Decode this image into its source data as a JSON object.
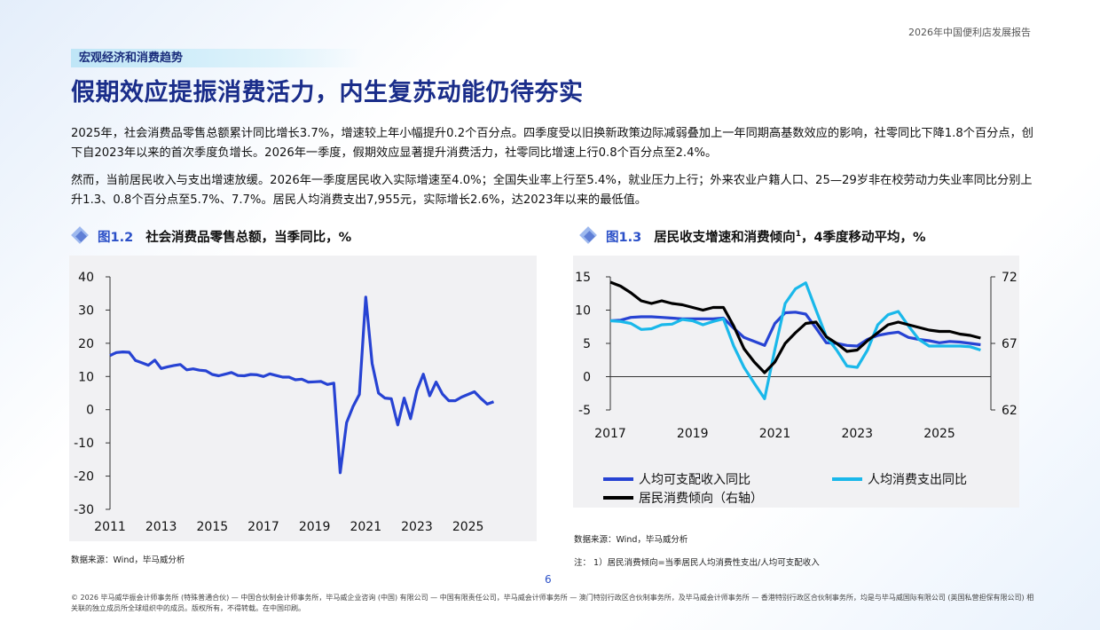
{
  "report_title": "2026年中国便利店发展报告",
  "section_tag": "宏观经济和消费趋势",
  "headline": "假期效应提振消费活力，内生复苏动能仍待夯实",
  "paragraphs": [
    "2025年，社会消费品零售总额累计同比增长3.7%，增速较上年小幅提升0.2个百分点。四季度受以旧换新政策边际减弱叠加上一年同期高基数效应的影响，社零同比下降1.8个百分点，创下自2023年以来的首次季度负增长。2026年一季度，假期效应显著提升消费活力，社零同比增速上行0.8个百分点至2.4%。",
    "然而，当前居民收入与支出增速放缓。2026年一季度居民收入实际增速至4.0%；全国失业率上行至5.4%，就业压力上行；外来农业户籍人口、25—29岁非在校劳动力失业率同比分别上升1.3、0.8个百分点至5.7%、7.7%。居民人均消费支出7,955元，实际增长2.6%，达2023年以来的最低值。"
  ],
  "figures": {
    "left": {
      "num": "图1.2",
      "title": "社会消费品零售总额，当季同比，%",
      "source": "数据来源：Wind，毕马威分析"
    },
    "right": {
      "num": "图1.3",
      "title": "居民收支增速和消费倾向",
      "title_sup": "1",
      "title_rest": "，4季度移动平均，%",
      "source": "数据来源：Wind，毕马威分析",
      "note": "注：  1）居民消费倾向=当季居民人均消费性支出/人均可支配收入"
    }
  },
  "chart_data": [
    {
      "type": "line",
      "title": "社会消费品零售总额，当季同比，%",
      "x_ticks": [
        "2011",
        "2013",
        "2015",
        "2017",
        "2019",
        "2021",
        "2023",
        "2025"
      ],
      "y_ticks": [
        "40",
        "30",
        "20",
        "10",
        "0",
        "-10",
        "-20",
        "-30"
      ],
      "ylim": [
        -30,
        40
      ],
      "xlim": [
        2011,
        2026.4
      ],
      "grid": false,
      "series": [
        {
          "color": "#2743d3",
          "x": [
            2011,
            2011.25,
            2011.5,
            2011.75,
            2012,
            2012.25,
            2012.5,
            2012.75,
            2013,
            2013.25,
            2013.5,
            2013.75,
            2014,
            2014.25,
            2014.5,
            2014.75,
            2015,
            2015.25,
            2015.5,
            2015.75,
            2016,
            2016.25,
            2016.5,
            2016.75,
            2017,
            2017.25,
            2017.5,
            2017.75,
            2018,
            2018.25,
            2018.5,
            2018.75,
            2019,
            2019.25,
            2019.5,
            2019.75,
            2020,
            2020.25,
            2020.5,
            2020.75,
            2021,
            2021.25,
            2021.5,
            2021.75,
            2022,
            2022.25,
            2022.5,
            2022.75,
            2023,
            2023.25,
            2023.5,
            2023.75,
            2024,
            2024.25,
            2024.5,
            2024.75,
            2025,
            2025.25,
            2025.5,
            2025.75,
            2026
          ],
          "y": [
            16.3,
            17.2,
            17.4,
            17.3,
            14.8,
            14.1,
            13.4,
            14.9,
            12.4,
            12.9,
            13.3,
            13.6,
            12.0,
            12.3,
            11.9,
            11.7,
            10.6,
            10.2,
            10.7,
            11.2,
            10.3,
            10.2,
            10.6,
            10.5,
            10.0,
            10.8,
            10.3,
            9.8,
            9.8,
            9.0,
            9.2,
            8.3,
            8.4,
            8.5,
            7.6,
            8.0,
            -19.0,
            -3.9,
            0.9,
            4.6,
            33.9,
            13.9,
            5.0,
            3.5,
            3.3,
            -4.6,
            3.5,
            -2.7,
            5.8,
            10.7,
            4.2,
            8.3,
            4.7,
            2.7,
            2.7,
            3.8,
            4.6,
            5.4,
            3.4,
            1.7,
            2.4
          ]
        }
      ]
    },
    {
      "type": "line",
      "title": "居民收支增速和消费倾向1，4季度移动平均，%",
      "x_ticks": [
        "2017",
        "2019",
        "2021",
        "2023",
        "2025"
      ],
      "y_ticks": [
        "15",
        "10",
        "5",
        "0",
        "-5"
      ],
      "y2_ticks": [
        "72",
        "67",
        "62"
      ],
      "ylim": [
        -5,
        15
      ],
      "y2lim": [
        62,
        72
      ],
      "xlim": [
        2017,
        2026.25
      ],
      "grid": false,
      "legend_position": "bottom",
      "series": [
        {
          "name": "人均可支配收入同比",
          "color": "#2743d3",
          "axis": "left",
          "x": [
            2017,
            2017.25,
            2017.5,
            2017.75,
            2018,
            2018.25,
            2018.5,
            2018.75,
            2019,
            2019.25,
            2019.5,
            2019.75,
            2020,
            2020.25,
            2020.5,
            2020.75,
            2021,
            2021.25,
            2021.5,
            2021.75,
            2022,
            2022.25,
            2022.5,
            2022.75,
            2023,
            2023.25,
            2023.5,
            2023.75,
            2024,
            2024.25,
            2024.5,
            2024.75,
            2025,
            2025.25,
            2025.5,
            2025.75,
            2026
          ],
          "y": [
            8.4,
            8.5,
            8.9,
            9.0,
            9.0,
            8.9,
            8.8,
            8.7,
            8.7,
            8.7,
            8.7,
            8.8,
            7.3,
            5.9,
            5.3,
            4.7,
            8.0,
            9.6,
            9.7,
            9.4,
            7.3,
            5.1,
            5.0,
            4.7,
            4.6,
            5.6,
            6.2,
            6.5,
            6.7,
            5.9,
            5.6,
            5.4,
            5.1,
            5.3,
            5.2,
            5.0,
            4.8
          ]
        },
        {
          "name": "人均消费支出同比",
          "color": "#1ab8ea",
          "axis": "left",
          "x": [
            2017,
            2017.25,
            2017.5,
            2017.75,
            2018,
            2018.25,
            2018.5,
            2018.75,
            2019,
            2019.25,
            2019.5,
            2019.75,
            2020,
            2020.25,
            2020.5,
            2020.75,
            2021,
            2021.25,
            2021.5,
            2021.75,
            2022,
            2022.25,
            2022.5,
            2022.75,
            2023,
            2023.25,
            2023.5,
            2023.75,
            2024,
            2024.25,
            2024.5,
            2024.75,
            2025,
            2025.25,
            2025.5,
            2025.75,
            2026
          ],
          "y": [
            8.4,
            8.3,
            8.0,
            7.1,
            7.2,
            7.8,
            7.9,
            8.6,
            8.4,
            7.8,
            8.3,
            8.7,
            4.6,
            1.4,
            -1.0,
            -3.3,
            4.1,
            11.0,
            13.2,
            14.1,
            10.0,
            6.0,
            4.0,
            1.6,
            1.4,
            4.0,
            7.8,
            9.3,
            9.8,
            7.6,
            5.6,
            4.6,
            4.6,
            4.6,
            4.6,
            4.5,
            4.0
          ]
        },
        {
          "name": "居民消费倾向（右轴）",
          "color": "#000000",
          "axis": "right",
          "x": [
            2017,
            2017.25,
            2017.5,
            2017.75,
            2018,
            2018.25,
            2018.5,
            2018.75,
            2019,
            2019.25,
            2019.5,
            2019.75,
            2020,
            2020.25,
            2020.5,
            2020.75,
            2021,
            2021.25,
            2021.5,
            2021.75,
            2022,
            2022.25,
            2022.5,
            2022.75,
            2023,
            2023.25,
            2023.5,
            2023.75,
            2024,
            2024.25,
            2024.5,
            2024.75,
            2025,
            2025.25,
            2025.5,
            2025.75,
            2026
          ],
          "y": [
            71.6,
            71.3,
            70.8,
            70.2,
            70.0,
            70.2,
            70.0,
            69.9,
            69.7,
            69.5,
            69.7,
            69.7,
            68.3,
            66.6,
            65.6,
            64.8,
            65.6,
            67.0,
            67.8,
            68.5,
            68.6,
            67.5,
            67.0,
            66.4,
            66.5,
            67.2,
            67.8,
            68.4,
            68.6,
            68.4,
            68.2,
            68.0,
            67.9,
            67.9,
            67.7,
            67.6,
            67.4
          ]
        }
      ]
    }
  ],
  "page_number": "6",
  "footer": "© 2026 毕马威华振会计师事务所 (特殊普通合伙) — 中国合伙制会计师事务所，毕马威企业咨询 (中国) 有限公司 — 中国有限责任公司，毕马威会计师事务所 — 澳门特别行政区合伙制事务所，及毕马威会计师事务所 — 香港特别行政区合伙制事务所，均是与毕马威国际有限公司 (英国私营担保有限公司) 相关联的独立成员所全球组织中的成员。版权所有，不得转载。在中国印刷。"
}
